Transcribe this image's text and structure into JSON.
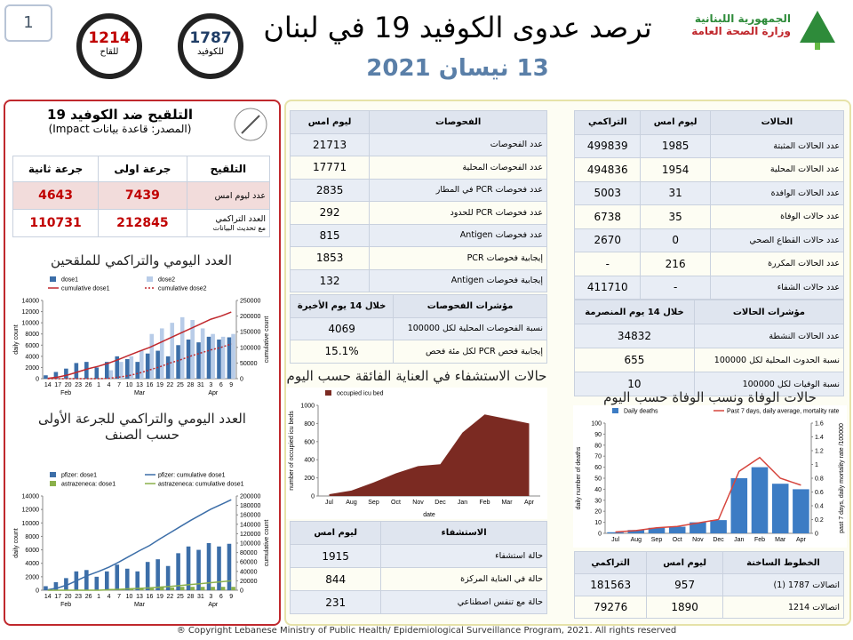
{
  "header": {
    "page_number": "1",
    "title": "ترصد عدوى الكوفيد 19 في لبنان",
    "date": "13 نيسان 2021",
    "ministry": [
      "الجمهورية اللبنانية",
      "وزارة الصحة العامة"
    ],
    "hotline_badges": [
      {
        "number": "1787",
        "label": "للكوفيد"
      },
      {
        "number": "1214",
        "label": "للقاح"
      }
    ]
  },
  "vaccination": {
    "title": "التلقيح ضد الكوفيد 19",
    "source": "(المصدر: قاعدة بيانات Impact)",
    "table": {
      "header": [
        "التلقيح",
        "جرعة اولى",
        "جرعة ثانية"
      ],
      "rows": [
        {
          "label": "عدد ليوم امس",
          "values": [
            "7439",
            "4643"
          ]
        },
        {
          "label": "العدد التراكمي",
          "sublabel": "مع تحديث البيانات",
          "values": [
            "212845",
            "110731"
          ]
        }
      ]
    }
  },
  "tests": {
    "header": [
      "الفحوصات",
      "ليوم امس"
    ],
    "rows": [
      [
        "عدد الفحوصات",
        "21713"
      ],
      [
        "عدد الفحوصات المحلية",
        "17771"
      ],
      [
        "عدد فحوصات PCR في المطار",
        "2835"
      ],
      [
        "عدد فحوصات PCR للحدود",
        "292"
      ],
      [
        "عدد فحوصات Antigen",
        "815"
      ],
      [
        "إيجابية فحوصات PCR",
        "1853"
      ],
      [
        "إيجابية فحوصات Antigen",
        "132"
      ]
    ]
  },
  "test_indicators": {
    "header": [
      "مؤشرات الفحوصات",
      "خلال 14 يوم الأخيرة"
    ],
    "rows": [
      [
        "نسبة الفحوصات المحلية لكل 100000",
        "4069"
      ],
      [
        "إيجابية فحص PCR لكل مئة فحص",
        "15.1%"
      ]
    ]
  },
  "hospitalization": {
    "header": [
      "الاستشفاء",
      "ليوم امس"
    ],
    "rows": [
      [
        "حالة استشفاء",
        "1915"
      ],
      [
        "حالة في العناية المركزة",
        "844"
      ],
      [
        "حالة مع تنفس اصطناعي",
        "231"
      ]
    ]
  },
  "cases": {
    "header": [
      "الحالات",
      "ليوم امس",
      "التراكمي"
    ],
    "rows": [
      [
        "عدد الحالات المثبتة",
        "1985",
        "499839"
      ],
      [
        "عدد الحالات المحلية",
        "1954",
        "494836"
      ],
      [
        "عدد الحالات الوافدة",
        "31",
        "5003"
      ],
      [
        "عدد حالات الوفاة",
        "35",
        "6738"
      ],
      [
        "عدد حالات القطاع الصحي",
        "0",
        "2670"
      ],
      [
        "عدد الحالات المكررة",
        "216",
        "-"
      ],
      [
        "عدد حالات الشفاء",
        "-",
        "411710"
      ]
    ]
  },
  "case_indicators": {
    "header": [
      "مؤشرات الحالات",
      "خلال 14 يوم المنصرمة"
    ],
    "rows": [
      [
        "عدد الحالات النشطة",
        "34832"
      ],
      [
        "نسبة الحدوث المحلية لكل 100000",
        "655"
      ],
      [
        "نسبة الوفيات لكل 100000",
        "10"
      ]
    ]
  },
  "hotlines": {
    "header": [
      "الخطوط الساخنة",
      "ليوم امس",
      "التراكمي"
    ],
    "rows": [
      [
        "اتصالات 1787 (1)",
        "957",
        "181563"
      ],
      [
        "اتصالات 1214",
        "1890",
        "79276"
      ]
    ]
  },
  "footer": "® Copyright Lebanese Ministry of Public Health/ Epidemiological Surveillance Program, 2021. All rights reserved",
  "chart_data": [
    {
      "type": "combo",
      "title": "العدد اليومي والتراكمي للملقحين",
      "categories": [
        "14",
        "17",
        "20",
        "23",
        "26",
        "1",
        "4",
        "7",
        "10",
        "13",
        "16",
        "19",
        "22",
        "25",
        "28",
        "31",
        "3",
        "6",
        "9"
      ],
      "x_groups": [
        "Feb",
        "Mar",
        "Apr"
      ],
      "ylabel": "daily count",
      "y2label": "cumulative count",
      "ylim": [
        0,
        14000
      ],
      "yticks": [
        0,
        2000,
        4000,
        6000,
        8000,
        10000,
        12000,
        14000
      ],
      "y2lim": [
        0,
        250000
      ],
      "y2ticks": [
        0,
        50000,
        100000,
        150000,
        200000,
        250000
      ],
      "grid": false,
      "series": [
        {
          "name": "dose1",
          "kind": "bar",
          "color": "#3c6ea8",
          "values": [
            600,
            1200,
            1800,
            2800,
            3000,
            2000,
            3000,
            4000,
            3500,
            3000,
            4500,
            5000,
            4000,
            6000,
            7000,
            6500,
            7500,
            7000,
            7400
          ]
        },
        {
          "name": "dose2",
          "kind": "bar",
          "color": "#b8cce8",
          "values": [
            0,
            0,
            0,
            0,
            0,
            0,
            1500,
            3000,
            4000,
            5000,
            8000,
            9000,
            10000,
            11000,
            10500,
            9000,
            8000,
            7500,
            8000
          ]
        },
        {
          "name": "cumulative dose1",
          "kind": "line",
          "axis": "y2",
          "color": "#c0282d",
          "values": [
            1000,
            5000,
            12000,
            22000,
            32000,
            40000,
            50000,
            62000,
            75000,
            88000,
            100000,
            115000,
            130000,
            145000,
            160000,
            175000,
            190000,
            200000,
            212845
          ]
        },
        {
          "name": "cumulative dose2",
          "kind": "line",
          "axis": "y2",
          "dash": true,
          "color": "#c0282d",
          "values": [
            0,
            0,
            0,
            0,
            0,
            0,
            1000,
            5000,
            10000,
            18000,
            28000,
            38000,
            50000,
            60000,
            72000,
            82000,
            92000,
            100000,
            110731
          ]
        }
      ]
    },
    {
      "type": "combo",
      "title": "العدد اليومي والتراكمي للجرعة الأولى حسب الصنف",
      "categories": [
        "14",
        "17",
        "20",
        "23",
        "26",
        "1",
        "4",
        "7",
        "10",
        "13",
        "16",
        "19",
        "22",
        "25",
        "28",
        "31",
        "3",
        "6",
        "9"
      ],
      "x_groups": [
        "Feb",
        "Mar",
        "Apr"
      ],
      "ylabel": "daily count",
      "y2label": "cumulative count",
      "ylim": [
        0,
        14000
      ],
      "yticks": [
        0,
        2000,
        4000,
        6000,
        8000,
        10000,
        12000,
        14000
      ],
      "y2lim": [
        0,
        200000
      ],
      "y2ticks": [
        0,
        20000,
        40000,
        60000,
        80000,
        100000,
        120000,
        140000,
        160000,
        180000,
        200000
      ],
      "grid": false,
      "series": [
        {
          "name": "pfizer: dose1",
          "kind": "bar",
          "color": "#3c6ea8",
          "values": [
            600,
            1200,
            1800,
            2800,
            3000,
            2000,
            2800,
            3800,
            3200,
            2800,
            4200,
            4600,
            3600,
            5500,
            6500,
            6000,
            7000,
            6500,
            6900
          ]
        },
        {
          "name": "pfizer: cumulative dose1",
          "kind": "line",
          "axis": "y2",
          "color": "#3c6ea8",
          "values": [
            1000,
            5000,
            12000,
            22000,
            32000,
            40000,
            49000,
            60000,
            72000,
            84000,
            95000,
            109000,
            122000,
            135000,
            148000,
            160000,
            172000,
            182000,
            192000
          ]
        },
        {
          "name": "astrazeneca: dose1",
          "kind": "bar",
          "color": "#8ab04a",
          "values": [
            0,
            0,
            0,
            0,
            0,
            0,
            200,
            200,
            300,
            200,
            300,
            400,
            400,
            500,
            500,
            500,
            500,
            500,
            500
          ]
        },
        {
          "name": "astrazeneca: cumulative dose1",
          "kind": "line",
          "axis": "y2",
          "color": "#8ab04a",
          "values": [
            0,
            0,
            0,
            0,
            0,
            0,
            1000,
            2000,
            3000,
            4000,
            5000,
            6500,
            8000,
            10000,
            12000,
            14000,
            16000,
            18000,
            20000
          ]
        }
      ]
    },
    {
      "type": "area",
      "title": "حالات الاستشفاء في العناية الفائقة حسب اليوم",
      "categories": [
        "Jul",
        "Aug",
        "Sep",
        "Oct",
        "Nov",
        "Dec",
        "Jan",
        "Feb",
        "Mar",
        "Apr"
      ],
      "ylabel": "number of occupied icu beds",
      "xlabel": "date",
      "ylim": [
        0,
        1000
      ],
      "yticks": [
        0,
        200,
        400,
        600,
        800,
        1000
      ],
      "grid": false,
      "series": [
        {
          "name": "occupied icu bed",
          "kind": "area",
          "color": "#7b2a22",
          "values": [
            20,
            60,
            150,
            250,
            330,
            350,
            700,
            900,
            850,
            800
          ]
        }
      ]
    },
    {
      "type": "combo",
      "title": "حالات الوفاة ونسب الوفاة حسب اليوم",
      "categories": [
        "Jul",
        "Aug",
        "Sep",
        "Oct",
        "Nov",
        "Dec",
        "Jan",
        "Feb",
        "Mar",
        "Apr"
      ],
      "ylabel": "daily number of deaths",
      "y2label": "past 7 days, daily mortality rate /100000",
      "ylim": [
        0,
        100
      ],
      "yticks": [
        0,
        10,
        20,
        30,
        40,
        50,
        60,
        70,
        80,
        90,
        100
      ],
      "y2lim": [
        0,
        1.6
      ],
      "y2ticks": [
        0,
        0.2,
        0.4,
        0.6,
        0.8,
        1,
        1.2,
        1.4,
        1.6
      ],
      "grid": false,
      "series": [
        {
          "name": "Daily deaths",
          "kind": "bar",
          "color": "#3c7cc4",
          "values": [
            1,
            3,
            5,
            6,
            10,
            12,
            50,
            60,
            45,
            40
          ]
        },
        {
          "name": "Past 7 days, daily average, mortality rate",
          "kind": "line",
          "axis": "y2",
          "color": "#d6453d",
          "values": [
            0.02,
            0.04,
            0.08,
            0.1,
            0.15,
            0.2,
            0.9,
            1.1,
            0.8,
            0.7
          ]
        }
      ]
    }
  ]
}
